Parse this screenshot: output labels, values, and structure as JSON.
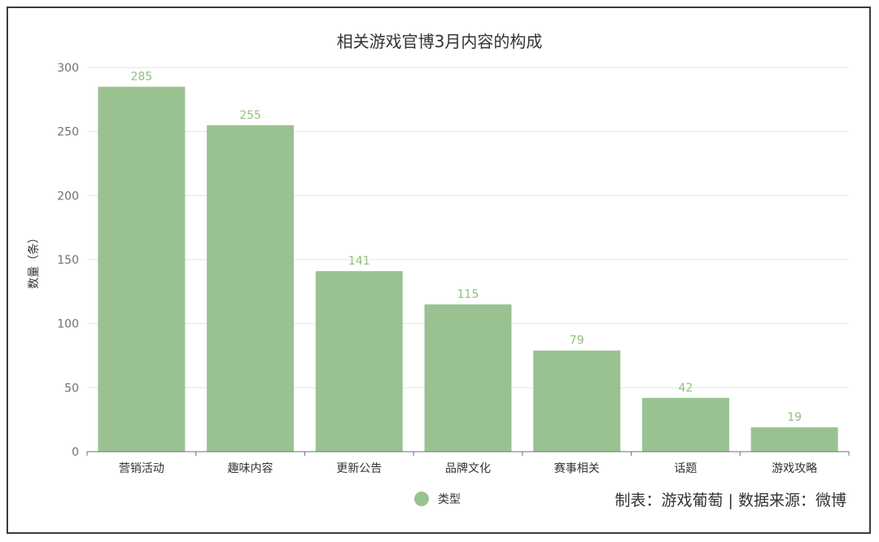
{
  "chart_data": {
    "type": "bar",
    "title": "相关游戏官博3月内容的构成",
    "ylabel": "数量（条）",
    "xlabel": "",
    "categories": [
      "营销活动",
      "趣味内容",
      "更新公告",
      "品牌文化",
      "赛事相关",
      "话题",
      "游戏攻略"
    ],
    "series": [
      {
        "name": "类型",
        "values": [
          285,
          255,
          141,
          115,
          79,
          42,
          19
        ]
      }
    ],
    "ylim": [
      0,
      300
    ],
    "yticks": [
      0,
      50,
      100,
      150,
      200,
      250,
      300
    ],
    "grid": true,
    "legend_position": "bottom-center",
    "bar_color": "#9ac291",
    "label_color": "#8fbf7f"
  },
  "source_note": "制表：游戏葡萄 | 数据来源：微博"
}
